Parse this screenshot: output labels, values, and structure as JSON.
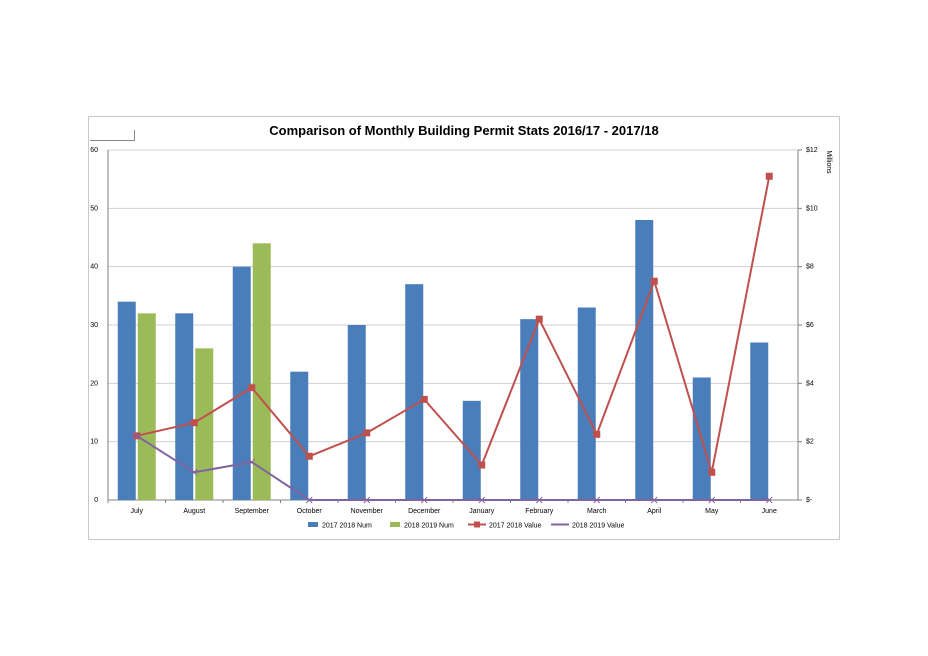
{
  "chart_data": {
    "type": "bar",
    "title": "Comparison of Monthly Building Permit Stats 2016/17  - 2017/18",
    "categories": [
      "July",
      "August",
      "September",
      "October",
      "November",
      "December",
      "January",
      "February",
      "March",
      "April",
      "May",
      "June"
    ],
    "y_left": {
      "min": 0,
      "max": 60,
      "ticks": [
        "0",
        "10",
        "20",
        "30",
        "40",
        "50",
        "60"
      ]
    },
    "y_right": {
      "label": "Millions",
      "min": 0,
      "max": 12,
      "ticks": [
        "$-",
        "$2",
        "$4",
        "$6",
        "$8",
        "$10",
        "$12"
      ]
    },
    "series": [
      {
        "name": "2017 2018 Num",
        "kind": "bar",
        "axis": "left",
        "color": "#4a7ebb",
        "values": [
          34,
          32,
          40,
          22,
          30,
          37,
          17,
          31,
          33,
          48,
          21,
          27
        ]
      },
      {
        "name": "2018 2019 Num",
        "kind": "bar",
        "axis": "left",
        "color": "#9bbb59",
        "values": [
          32,
          26,
          44,
          null,
          null,
          null,
          null,
          null,
          null,
          null,
          null,
          null
        ]
      },
      {
        "name": "2017 2018 Value",
        "kind": "line",
        "axis": "right",
        "color": "#c0504d",
        "marker": "square",
        "values": [
          2.2,
          2.65,
          3.85,
          1.5,
          2.3,
          3.45,
          1.2,
          6.2,
          2.25,
          7.5,
          0.95,
          11.1
        ]
      },
      {
        "name": "2018 2019 Value",
        "kind": "line",
        "axis": "right",
        "color": "#8064a2",
        "marker": "x",
        "values": [
          2.2,
          0.95,
          1.3,
          0,
          0,
          0,
          0,
          0,
          0,
          0,
          0,
          0
        ]
      }
    ],
    "legend_position": "bottom",
    "grid": true
  }
}
